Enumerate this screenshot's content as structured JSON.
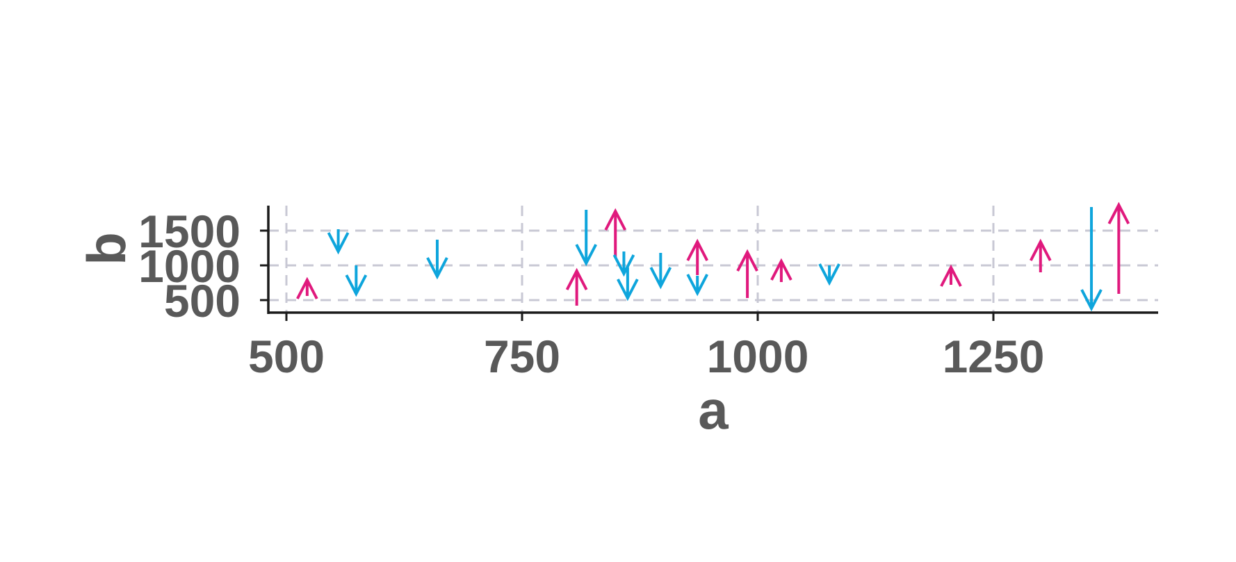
{
  "chart_data": {
    "type": "arrow",
    "xlabel": "a",
    "ylabel": "b",
    "xlim": [
      462,
      1420
    ],
    "ylim": [
      330,
      1860
    ],
    "x_ticks": [
      500,
      750,
      1000,
      1250
    ],
    "y_ticks": [
      500,
      1000,
      1500
    ],
    "grid": true,
    "legend": "none",
    "colors": {
      "up": "#e0197d",
      "down": "#0ea5dc"
    },
    "arrows": [
      {
        "x": 522,
        "y_start": 560,
        "y_end": 790,
        "dir": "up"
      },
      {
        "x": 555,
        "y_start": 1520,
        "y_end": 1200,
        "dir": "down"
      },
      {
        "x": 574,
        "y_start": 1000,
        "y_end": 590,
        "dir": "down"
      },
      {
        "x": 660,
        "y_start": 1370,
        "y_end": 840,
        "dir": "down"
      },
      {
        "x": 808,
        "y_start": 420,
        "y_end": 920,
        "dir": "up"
      },
      {
        "x": 818,
        "y_start": 1800,
        "y_end": 1030,
        "dir": "down"
      },
      {
        "x": 849,
        "y_start": 1110,
        "y_end": 1780,
        "dir": "up"
      },
      {
        "x": 858,
        "y_start": 1200,
        "y_end": 880,
        "dir": "down"
      },
      {
        "x": 862,
        "y_start": 970,
        "y_end": 530,
        "dir": "down"
      },
      {
        "x": 897,
        "y_start": 1180,
        "y_end": 700,
        "dir": "down"
      },
      {
        "x": 936,
        "y_start": 860,
        "y_end": 1340,
        "dir": "up"
      },
      {
        "x": 936,
        "y_start": 850,
        "y_end": 600,
        "dir": "down"
      },
      {
        "x": 989,
        "y_start": 530,
        "y_end": 1190,
        "dir": "up"
      },
      {
        "x": 1025,
        "y_start": 760,
        "y_end": 1060,
        "dir": "up"
      },
      {
        "x": 1076,
        "y_start": 1000,
        "y_end": 750,
        "dir": "down"
      },
      {
        "x": 1205,
        "y_start": 720,
        "y_end": 970,
        "dir": "up"
      },
      {
        "x": 1300,
        "y_start": 900,
        "y_end": 1340,
        "dir": "up"
      },
      {
        "x": 1354,
        "y_start": 1840,
        "y_end": 380,
        "dir": "down"
      },
      {
        "x": 1383,
        "y_start": 590,
        "y_end": 1870,
        "dir": "up"
      }
    ]
  }
}
